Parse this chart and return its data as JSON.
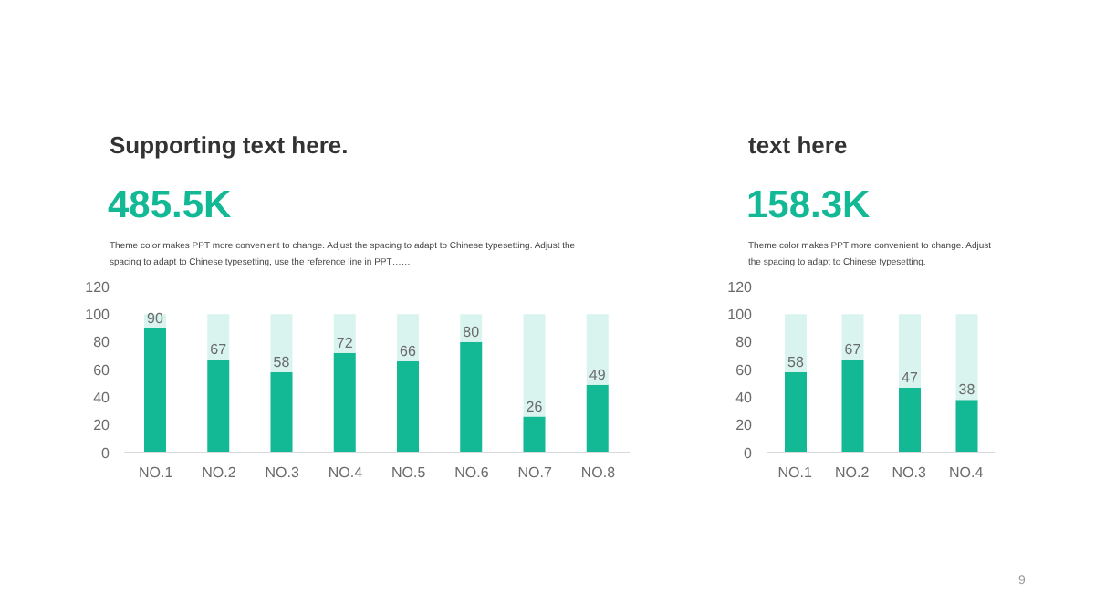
{
  "chart_data": [
    {
      "type": "bar",
      "title": "Supporting text here.",
      "subtitle": "485.5K",
      "annotations": [
        "Theme color makes PPT more convenient to change. Adjust the spacing to adapt to Chinese typesetting. Adjust the spacing to adapt to Chinese typesetting, use the reference line in PPT……"
      ],
      "categories": [
        "NO.1",
        "NO.2",
        "NO.3",
        "NO.4",
        "NO.5",
        "NO.6",
        "NO.7",
        "NO.8"
      ],
      "series": [
        {
          "color": "#13b894",
          "values": [
            90,
            67,
            58,
            72,
            66,
            80,
            26,
            49
          ],
          "value_labels": [
            "90",
            "67",
            "58",
            "72",
            "66",
            "80",
            "26",
            "49"
          ]
        },
        {
          "color": "#d9f4ee",
          "values": [
            10,
            33,
            42,
            28,
            34,
            20,
            74,
            51
          ]
        }
      ],
      "stacked": true,
      "ylim": [
        0,
        120
      ],
      "yticks": [
        0,
        20,
        40,
        60,
        80,
        100,
        120
      ],
      "grid": false,
      "legend": false
    },
    {
      "type": "bar",
      "title": "text here",
      "subtitle": "158.3K",
      "annotations": [
        "Theme color makes PPT more convenient to change. Adjust the spacing to adapt to Chinese typesetting.",
        "9"
      ],
      "categories": [
        "NO.1",
        "NO.2",
        "NO.3",
        "NO.4"
      ],
      "series": [
        {
          "color": "#13b894",
          "values": [
            58,
            67,
            47,
            38
          ],
          "value_labels": [
            "58",
            "67",
            "47",
            "38"
          ]
        },
        {
          "color": "#d9f4ee",
          "values": [
            42,
            33,
            53,
            62
          ]
        }
      ],
      "stacked": true,
      "ylim": [
        0,
        120
      ],
      "yticks": [
        0,
        20,
        40,
        60,
        80,
        100,
        120
      ],
      "grid": false,
      "legend": false
    }
  ]
}
